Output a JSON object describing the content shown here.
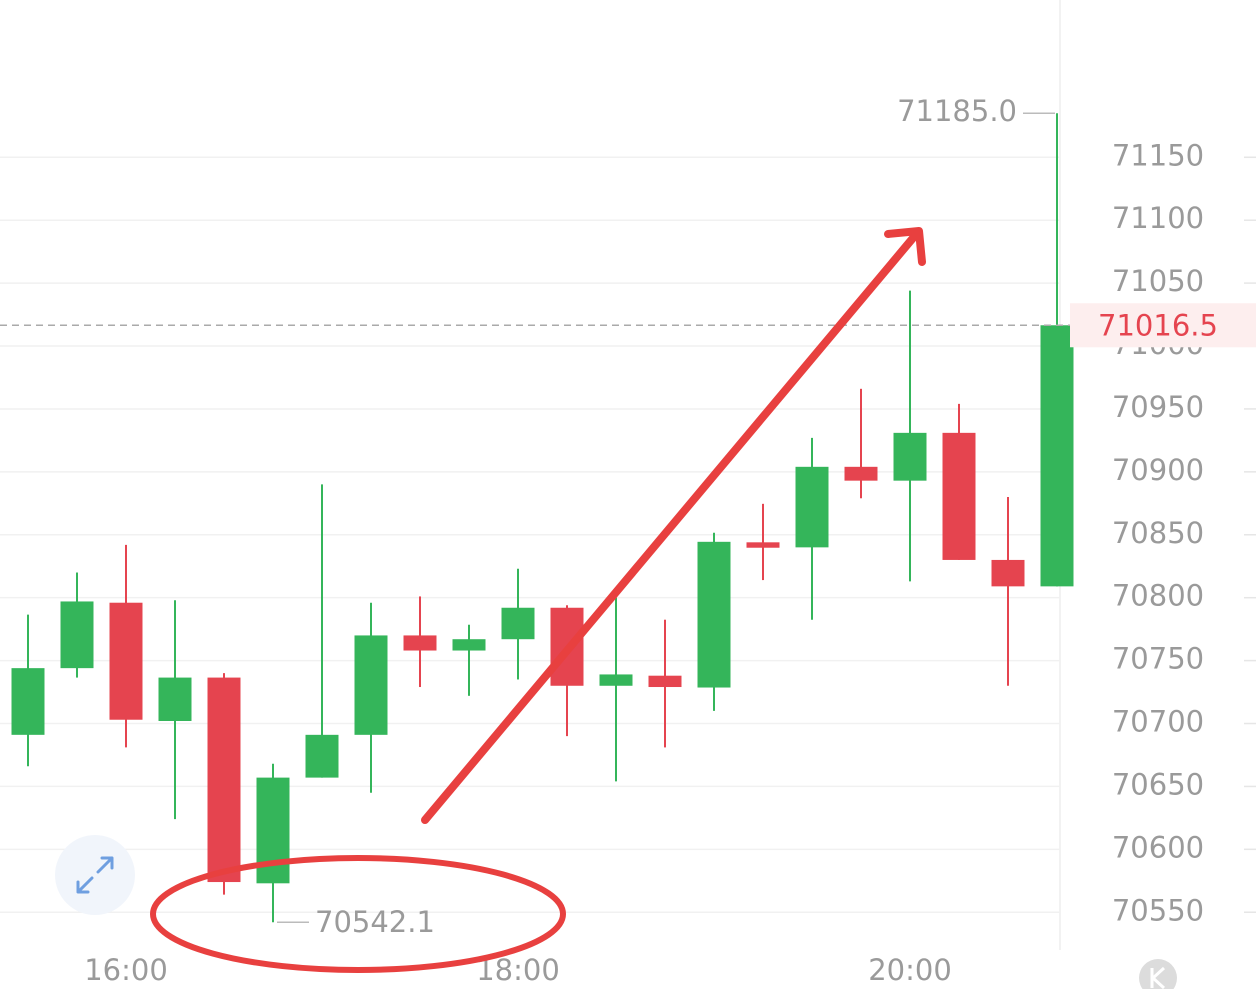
{
  "chart_data": {
    "type": "candlestick",
    "categories": [
      null,
      null,
      "16:00",
      null,
      null,
      null,
      null,
      null,
      null,
      null,
      "18:00",
      null,
      null,
      null,
      null,
      null,
      null,
      null,
      "20:00",
      null,
      null,
      null
    ],
    "open": [
      70691,
      70744,
      70796,
      70702,
      70736.5,
      70573,
      70657,
      70691,
      70770,
      70758,
      70767,
      70792,
      70730,
      70738,
      70728.6,
      70844,
      70840,
      70904,
      70893,
      70931,
      70830,
      70809
    ],
    "high": [
      70786.5,
      70820,
      70842,
      70798,
      70740,
      70668,
      70890,
      70796,
      70801,
      70778.5,
      70823,
      70794,
      70800,
      70782.5,
      70851.6,
      70874.6,
      70927,
      70966,
      71044,
      70954,
      70880,
      71185.0
    ],
    "low": [
      70666,
      70736.5,
      70681,
      70624,
      70564,
      70542.1,
      70657,
      70645,
      70729,
      70722,
      70735,
      70690,
      70654,
      70681,
      70710,
      70814,
      70782.5,
      70879,
      70813,
      70830,
      70730,
      70809
    ],
    "close": [
      70744,
      70797,
      70703,
      70736.5,
      70574,
      70657,
      70691,
      70770,
      70758,
      70767,
      70792,
      70730,
      70739,
      70729,
      70844.4,
      70839.7,
      70904,
      70893,
      70931,
      70830,
      70809,
      71016.5
    ],
    "up_color": "#34b55a",
    "down_color": "#e5444f",
    "ylim": [
      70520,
      71275
    ],
    "yticks": [
      70550,
      70600,
      70650,
      70700,
      70750,
      70800,
      70850,
      70900,
      70950,
      71000,
      71050,
      71100,
      71150
    ],
    "grid": true,
    "annotations": {
      "high": {
        "value": 71185.0,
        "label": "71185.0"
      },
      "low": {
        "value": 70542.1,
        "label": "70542.1"
      },
      "last": 71016.5
    }
  }
}
